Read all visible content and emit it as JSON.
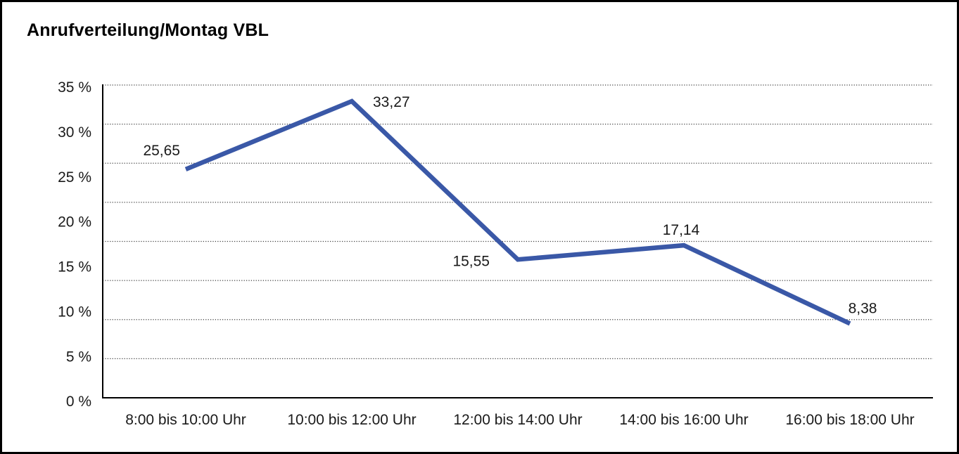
{
  "title": "Anrufverteilung/Montag VBL",
  "chart_data": {
    "type": "line",
    "title": "Anrufverteilung/Montag VBL",
    "categories": [
      "8:00 bis 10:00 Uhr",
      "10:00 bis 12:00 Uhr",
      "12:00 bis 14:00 Uhr",
      "14:00 bis 16:00 Uhr",
      "16:00 bis 18:00 Uhr"
    ],
    "values": [
      25.65,
      33.27,
      15.55,
      17.14,
      8.38
    ],
    "value_labels": [
      "25,65",
      "33,27",
      "15,55",
      "17,14",
      "8,38"
    ],
    "series_name": "Anrufverteilung Montag",
    "xlabel": "",
    "ylabel": "",
    "y_tick_labels": [
      "0 %",
      "5 %",
      "10 %",
      "15 %",
      "20 %",
      "25 %",
      "30 %",
      "35 %"
    ],
    "ylim": [
      0,
      35
    ],
    "y_unit": "%",
    "grid": "horizontal-dotted",
    "gridline_count": 9,
    "legend": "none",
    "line_color": "#3A58A7",
    "grid_color": "#3c3c3c",
    "axis_color": "#000000",
    "text_color": "#1a1a1a"
  }
}
